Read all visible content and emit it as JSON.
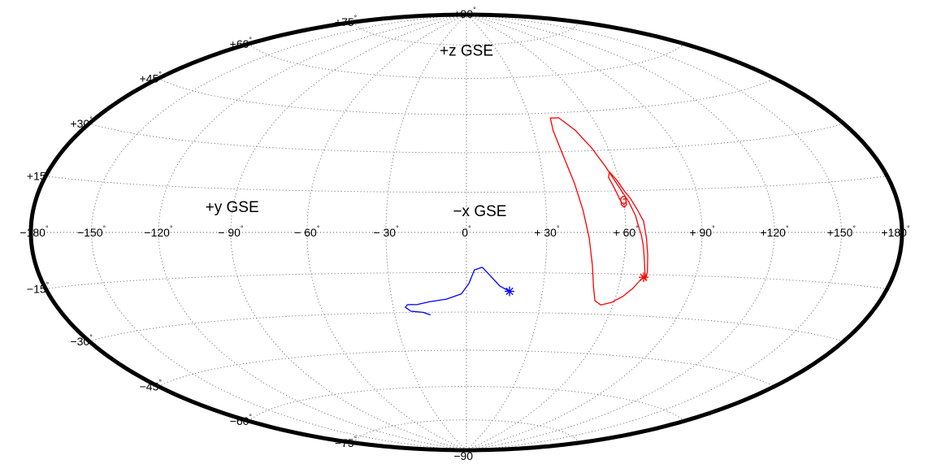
{
  "chart_data": {
    "type": "map",
    "projection": "hammer-aitoff",
    "grid": true,
    "grid_style": "dotted",
    "longitude_ticks": [
      {
        "lon": -180,
        "label": "−180"
      },
      {
        "lon": -150,
        "label": "−150"
      },
      {
        "lon": -120,
        "label": "−120"
      },
      {
        "lon": -90,
        "label": "− 90"
      },
      {
        "lon": -60,
        "label": "− 60"
      },
      {
        "lon": -30,
        "label": "− 30"
      },
      {
        "lon": 0,
        "label": "0"
      },
      {
        "lon": 30,
        "label": "+ 30"
      },
      {
        "lon": 60,
        "label": "+ 60"
      },
      {
        "lon": 90,
        "label": "+ 90"
      },
      {
        "lon": 120,
        "label": "+120"
      },
      {
        "lon": 150,
        "label": "+150"
      },
      {
        "lon": 180,
        "label": "+180"
      }
    ],
    "latitude_ticks": [
      {
        "lat": 90,
        "label": "+90"
      },
      {
        "lat": 75,
        "label": "+75"
      },
      {
        "lat": 60,
        "label": "+60"
      },
      {
        "lat": 45,
        "label": "+45"
      },
      {
        "lat": 30,
        "label": "+30"
      },
      {
        "lat": 15,
        "label": "+15"
      },
      {
        "lat": -15,
        "label": "−15"
      },
      {
        "lat": -30,
        "label": "−30"
      },
      {
        "lat": -45,
        "label": "−45"
      },
      {
        "lat": -60,
        "label": "−60"
      },
      {
        "lat": -75,
        "label": "−75"
      },
      {
        "lat": -90,
        "label": "−90"
      }
    ],
    "annotations": [
      {
        "text": "+z GSE",
        "lon": 0,
        "lat": 70
      },
      {
        "text": "+y GSE",
        "lon": -90,
        "lat": 7
      },
      {
        "text": "−x GSE",
        "lon": 5,
        "lat": 6
      }
    ],
    "series": [
      {
        "color": "#ff0000",
        "end_marker": "*",
        "points": [
          [
            69,
            -16
          ],
          [
            68,
            -17
          ],
          [
            66,
            -20
          ],
          [
            63,
            -23
          ],
          [
            59,
            -25.5
          ],
          [
            55,
            -26.5
          ],
          [
            52,
            -25
          ],
          [
            50,
            -20
          ],
          [
            48,
            -12
          ],
          [
            46,
            -2
          ],
          [
            44,
            8
          ],
          [
            42,
            18
          ],
          [
            40,
            28
          ],
          [
            39,
            38
          ],
          [
            40,
            43
          ],
          [
            44,
            43
          ],
          [
            49,
            38
          ],
          [
            53,
            31
          ],
          [
            56,
            24
          ],
          [
            59,
            17
          ],
          [
            62,
            11
          ],
          [
            64,
            6
          ],
          [
            65,
            2
          ],
          [
            66,
            -1
          ],
          [
            67,
            -5
          ],
          [
            68,
            -10
          ],
          [
            69,
            -14
          ],
          [
            70,
            -17
          ],
          [
            70,
            -14
          ],
          [
            69,
            -8
          ],
          [
            68,
            -2
          ],
          [
            67,
            4
          ],
          [
            65,
            8
          ],
          [
            63,
            12
          ],
          [
            61,
            15
          ],
          [
            59,
            19
          ],
          [
            57,
            22
          ],
          [
            56,
            20
          ],
          [
            57,
            17
          ],
          [
            58,
            14
          ],
          [
            59,
            11
          ],
          [
            60,
            10
          ],
          [
            61,
            11
          ],
          [
            61,
            13
          ],
          [
            60,
            13
          ],
          [
            59,
            12
          ],
          [
            59,
            10
          ],
          [
            60,
            9
          ],
          [
            61,
            10
          ],
          [
            61,
            12
          ],
          [
            60,
            12
          ]
        ]
      },
      {
        "color": "#0000ff",
        "end_marker": "*",
        "points": [
          [
            17,
            -22
          ],
          [
            13,
            -20
          ],
          [
            9,
            -16
          ],
          [
            6,
            -13
          ],
          [
            3,
            -14
          ],
          [
            1,
            -19
          ],
          [
            -2,
            -23
          ],
          [
            -8,
            -25
          ],
          [
            -15,
            -26
          ],
          [
            -20,
            -27
          ],
          [
            -24,
            -27
          ],
          [
            -25,
            -28
          ],
          [
            -23,
            -29.5
          ],
          [
            -18,
            -30
          ],
          [
            -15,
            -31
          ]
        ]
      }
    ]
  }
}
